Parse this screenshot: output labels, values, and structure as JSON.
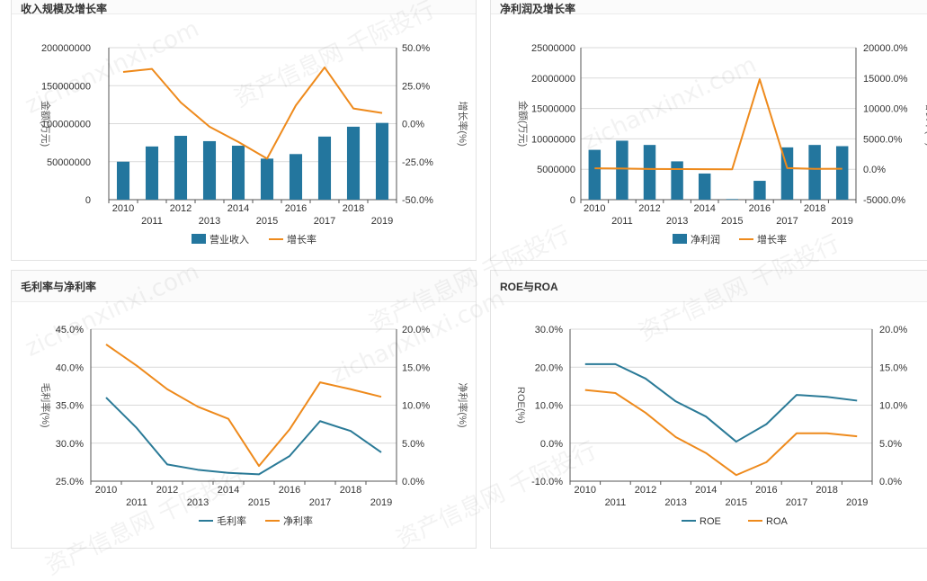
{
  "watermark": {
    "cn": "资产信息网 千际投行",
    "en": "zichanxinxi.com"
  },
  "colors": {
    "bar": "#23769e",
    "line_blue": "#2a7a97",
    "line_orange": "#ee8a1c",
    "grid": "#d9d9d9",
    "axis": "#555555"
  },
  "chart_data": [
    {
      "type": "bar+line",
      "title": "收入规模及增长率",
      "categories": [
        "2010",
        "2011",
        "2012",
        "2013",
        "2014",
        "2015",
        "2016",
        "2017",
        "2018",
        "2019"
      ],
      "left_axis": {
        "label": "金额(万元)",
        "min": 0,
        "max": 200000000,
        "ticks": [
          "0",
          "50000000",
          "100000000",
          "150000000",
          "200000000"
        ],
        "tick_values": [
          0,
          50000000,
          100000000,
          150000000,
          200000000
        ]
      },
      "right_axis": {
        "label": "增长率(%)",
        "min": -50,
        "max": 50,
        "ticks": [
          "-50.0%",
          "-25.0%",
          "0.0%",
          "25.0%",
          "50.0%"
        ],
        "tick_values": [
          -50,
          -25,
          0,
          25,
          50
        ]
      },
      "series": [
        {
          "name": "营业收入",
          "kind": "bar",
          "axis": "left",
          "values": [
            50000000,
            70000000,
            84000000,
            77000000,
            71000000,
            54000000,
            60000000,
            83000000,
            96000000,
            101000000
          ]
        },
        {
          "name": "增长率",
          "kind": "line",
          "axis": "right",
          "values": [
            34,
            36,
            14,
            -2,
            -12,
            -23,
            12,
            37,
            10,
            7
          ]
        }
      ]
    },
    {
      "type": "bar+line",
      "title": "净利润及增长率",
      "categories": [
        "2010",
        "2011",
        "2012",
        "2013",
        "2014",
        "2015",
        "2016",
        "2017",
        "2018",
        "2019"
      ],
      "left_axis": {
        "label": "金额(万元)",
        "min": 0,
        "max": 25000000,
        "ticks": [
          "0",
          "5000000",
          "10000000",
          "15000000",
          "20000000",
          "25000000"
        ],
        "tick_values": [
          0,
          5000000,
          10000000,
          15000000,
          20000000,
          25000000
        ]
      },
      "right_axis": {
        "label": "增长率(%)",
        "min": -5000,
        "max": 20000,
        "ticks": [
          "-5000.0%",
          "0.0%",
          "5000.0%",
          "10000.0%",
          "15000.0%",
          "20000.0%"
        ],
        "tick_values": [
          -5000,
          0,
          5000,
          10000,
          15000,
          20000
        ]
      },
      "series": [
        {
          "name": "净利润",
          "kind": "bar",
          "axis": "left",
          "values": [
            8200000,
            9700000,
            9000000,
            6300000,
            4300000,
            100000,
            3100000,
            8600000,
            9000000,
            8800000
          ]
        },
        {
          "name": "增长率",
          "kind": "line",
          "axis": "right",
          "values": [
            150,
            120,
            50,
            30,
            20,
            0,
            14800,
            200,
            60,
            80
          ]
        }
      ]
    },
    {
      "type": "line",
      "title": "毛利率与净利率",
      "categories": [
        "2010",
        "2011",
        "2012",
        "2013",
        "2014",
        "2015",
        "2016",
        "2017",
        "2018",
        "2019"
      ],
      "left_axis": {
        "label": "毛利率(%)",
        "min": 25,
        "max": 45,
        "ticks": [
          "25.0%",
          "30.0%",
          "35.0%",
          "40.0%",
          "45.0%"
        ],
        "tick_values": [
          25,
          30,
          35,
          40,
          45
        ]
      },
      "right_axis": {
        "label": "净利率(%)",
        "min": 0,
        "max": 20,
        "ticks": [
          "0.0%",
          "5.0%",
          "10.0%",
          "15.0%",
          "20.0%"
        ],
        "tick_values": [
          0,
          5,
          10,
          15,
          20
        ]
      },
      "series": [
        {
          "name": "毛利率",
          "kind": "line",
          "axis": "left",
          "color_key": "line_blue",
          "values": [
            36,
            32,
            27.2,
            26.5,
            26.1,
            25.9,
            28.3,
            32.9,
            31.6,
            28.8
          ]
        },
        {
          "name": "净利率",
          "kind": "line",
          "axis": "right",
          "color_key": "line_orange",
          "values": [
            18,
            15.2,
            12.1,
            9.8,
            8.2,
            2,
            6.8,
            13,
            12.1,
            11.1
          ]
        }
      ]
    },
    {
      "type": "line",
      "title": "ROE与ROA",
      "categories": [
        "2010",
        "2011",
        "2012",
        "2013",
        "2014",
        "2015",
        "2016",
        "2017",
        "2018",
        "2019"
      ],
      "left_axis": {
        "label": "ROE(%)",
        "min": -10,
        "max": 30,
        "ticks": [
          "-10.0%",
          "0.0%",
          "10.0%",
          "20.0%",
          "30.0%"
        ],
        "tick_values": [
          -10,
          0,
          10,
          20,
          30
        ]
      },
      "right_axis": {
        "label": "",
        "min": 0,
        "max": 20,
        "ticks": [
          "0.0%",
          "5.0%",
          "10.0%",
          "15.0%",
          "20.0%"
        ],
        "tick_values": [
          0,
          5,
          10,
          15,
          20
        ]
      },
      "series": [
        {
          "name": "ROE",
          "kind": "line",
          "axis": "left",
          "color_key": "line_blue",
          "values": [
            20.8,
            20.8,
            17,
            11,
            7,
            0.4,
            5,
            12.7,
            12.2,
            11.2
          ]
        },
        {
          "name": "ROA",
          "kind": "line",
          "axis": "right",
          "color_key": "line_orange",
          "values": [
            12,
            11.6,
            9,
            5.8,
            3.7,
            0.8,
            2.5,
            6.3,
            6.3,
            5.9
          ]
        }
      ]
    }
  ]
}
